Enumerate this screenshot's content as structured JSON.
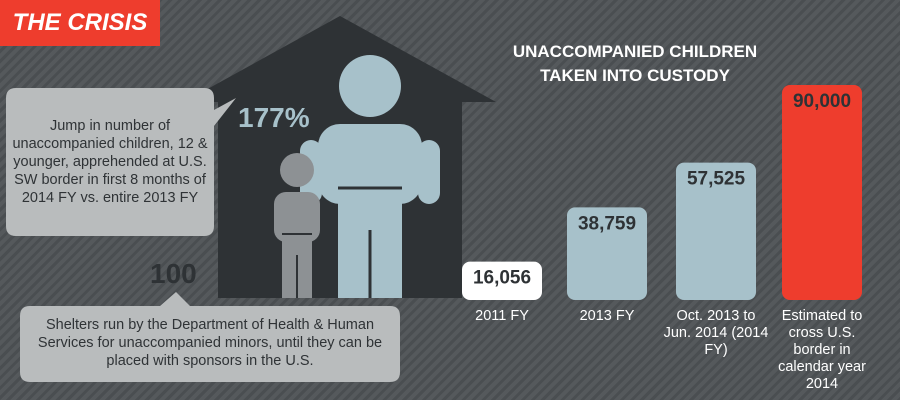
{
  "badge": "THE CRISIS",
  "chart_data": {
    "type": "bar",
    "title": "UNACCOMPANIED CHILDREN TAKEN INTO CUSTODY",
    "categories": [
      "2011 FY",
      "2013 FY",
      "Oct. 2013 to Jun. 2014 (2014 FY)",
      "Estimated to cross U.S. border in calendar year 2014"
    ],
    "values": [
      16056,
      38759,
      57525,
      90000
    ],
    "value_labels": [
      "16,056",
      "38,759",
      "57,525",
      "90,000"
    ],
    "colors": [
      "#ffffff",
      "#a7c1ca",
      "#a7c1ca",
      "#ee3d2d"
    ]
  },
  "stats": [
    {
      "value": 177,
      "label": "177%",
      "description": "Jump in number of unaccompanied children, 12 & younger, apprehended at U.S. SW border in first 8 months of 2014 FY vs. entire 2013 FY"
    },
    {
      "value": 100,
      "description": "Shelters run by the Department of Health & Human Services for unaccompanied minors, until they can be placed with sponsors in the U.S."
    }
  ]
}
